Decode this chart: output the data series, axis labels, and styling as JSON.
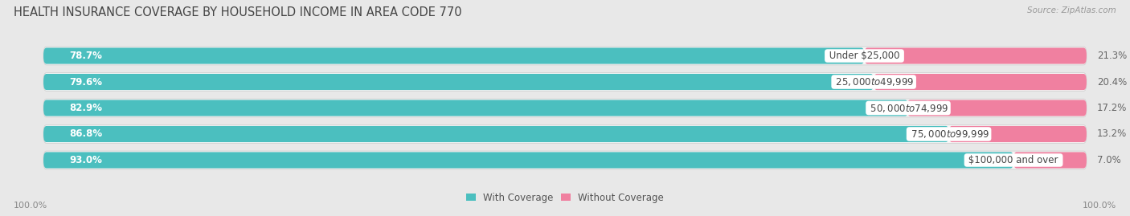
{
  "title": "HEALTH INSURANCE COVERAGE BY HOUSEHOLD INCOME IN AREA CODE 770",
  "source": "Source: ZipAtlas.com",
  "categories": [
    "Under $25,000",
    "$25,000 to $49,999",
    "$50,000 to $74,999",
    "$75,000 to $99,999",
    "$100,000 and over"
  ],
  "with_coverage": [
    78.7,
    79.6,
    82.9,
    86.8,
    93.0
  ],
  "without_coverage": [
    21.3,
    20.4,
    17.2,
    13.2,
    7.0
  ],
  "color_with": "#4bbfbf",
  "color_without": "#f080a0",
  "background_color": "#e8e8e8",
  "bar_bg_color": "#f5f5f5",
  "title_fontsize": 10.5,
  "label_fontsize": 8.5,
  "pct_fontsize": 8.5,
  "tick_fontsize": 8,
  "bar_height": 0.62,
  "figsize": [
    14.06,
    2.69
  ],
  "dpi": 100,
  "x_axis_label_left": "100.0%",
  "x_axis_label_right": "100.0%"
}
